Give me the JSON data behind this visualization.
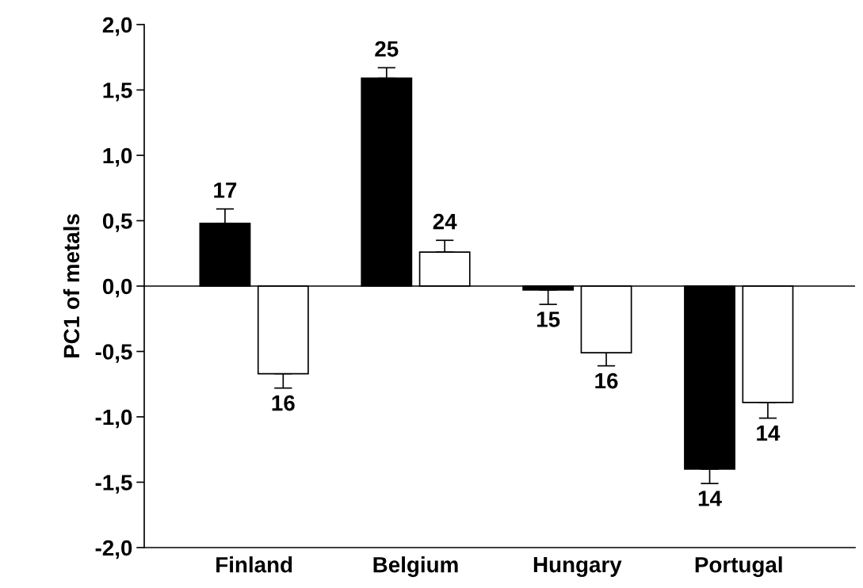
{
  "chart_data": {
    "type": "bar",
    "ylabel": "PC1 of metals",
    "categories": [
      "Finland",
      "Belgium",
      "Hungary",
      "Portugal"
    ],
    "series": [
      {
        "color": "#000000",
        "values": [
          0.48,
          1.59,
          -0.03,
          -1.4
        ],
        "errors": [
          [
            0.48,
            0.59
          ],
          [
            1.59,
            1.67
          ],
          [
            -0.14,
            -0.03
          ],
          [
            -1.51,
            -1.4
          ]
        ]
      },
      {
        "color": "#ffffff",
        "values": [
          -0.67,
          0.26,
          -0.51,
          -0.89
        ],
        "errors": [
          [
            -0.78,
            -0.67
          ],
          [
            0.26,
            0.35
          ],
          [
            -0.61,
            -0.51
          ],
          [
            -1.01,
            -0.89
          ]
        ]
      }
    ],
    "annotations": [
      {
        "text": "17",
        "y": 0.48
      },
      {
        "text": "16",
        "y": -0.51
      },
      {
        "text": "25",
        "y": 1.59
      },
      {
        "text": "24",
        "y": 0.26
      },
      {
        "text": "15",
        "y": -0.03
      },
      {
        "text": "16",
        "y": -0.67
      },
      {
        "text": "14",
        "y": -1.4
      },
      {
        "text": "14",
        "y": -0.89
      }
    ],
    "ylim": [
      -2.0,
      2.0
    ],
    "yticks": [
      {
        "value": -2.0,
        "label": "-2,0"
      },
      {
        "value": -1.5,
        "label": "-1,5"
      },
      {
        "value": -1.0,
        "label": "-1,0"
      },
      {
        "value": -0.5,
        "label": "-0,5"
      },
      {
        "value": 0.0,
        "label": "0,0"
      },
      {
        "value": 0.5,
        "label": "0,5"
      },
      {
        "value": 1.0,
        "label": "1,0"
      },
      {
        "value": 1.5,
        "label": "1,5"
      },
      {
        "value": 2.0,
        "label": "2,0"
      }
    ],
    "ref_lines": [
      {
        "axis": "y",
        "value": 0.0,
        "color": "#000000"
      }
    ],
    "grid": false,
    "legend": false
  }
}
